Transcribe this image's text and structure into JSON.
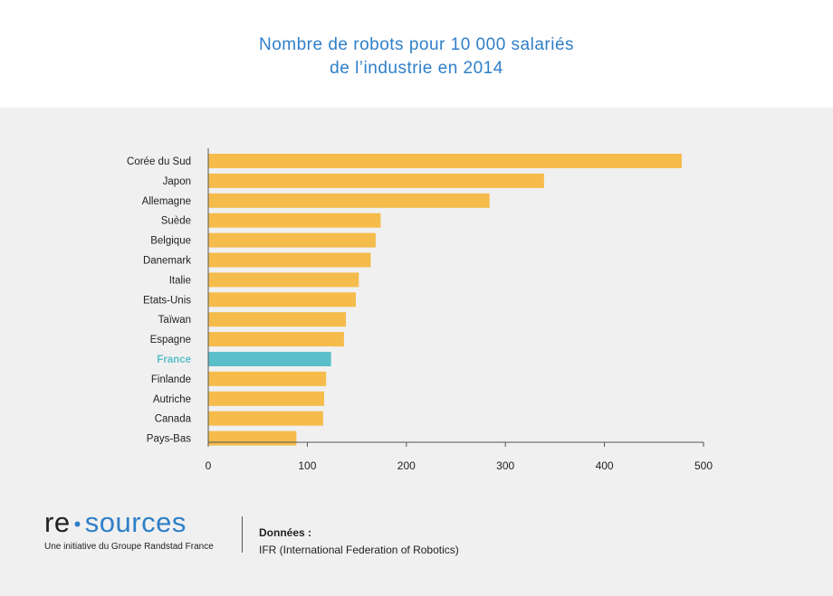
{
  "title_lines": [
    "Nombre de robots pour 10 000 salariés",
    "de l’industrie en 2014"
  ],
  "colors": {
    "bar": "#f5bc4c",
    "highlight": "#5bbfc9",
    "title": "#2f7fc8"
  },
  "chart_data": {
    "type": "bar",
    "orientation": "horizontal",
    "title": "Nombre de robots pour 10 000 salariés de l’industrie en 2014",
    "categories": [
      "Corée du Sud",
      "Japon",
      "Allemagne",
      "Suède",
      "Belgique",
      "Danemark",
      "Italie",
      "Etats-Unis",
      "Taïwan",
      "Espagne",
      "France",
      "Finlande",
      "Autriche",
      "Canada",
      "Pays-Bas"
    ],
    "values": [
      478,
      339,
      284,
      174,
      169,
      164,
      152,
      149,
      139,
      137,
      124,
      119,
      117,
      116,
      89
    ],
    "highlight": "France",
    "xlim": [
      0,
      500
    ],
    "xticks": [
      0,
      100,
      200,
      300,
      400,
      500
    ],
    "grid": false
  },
  "footer": {
    "logo_left": "re",
    "logo_dot": "•",
    "logo_right": "sources",
    "tagline": "Une initiative du Groupe Randstad France",
    "source_label": "Données :",
    "source_text": "IFR (International Federation of Robotics)"
  }
}
